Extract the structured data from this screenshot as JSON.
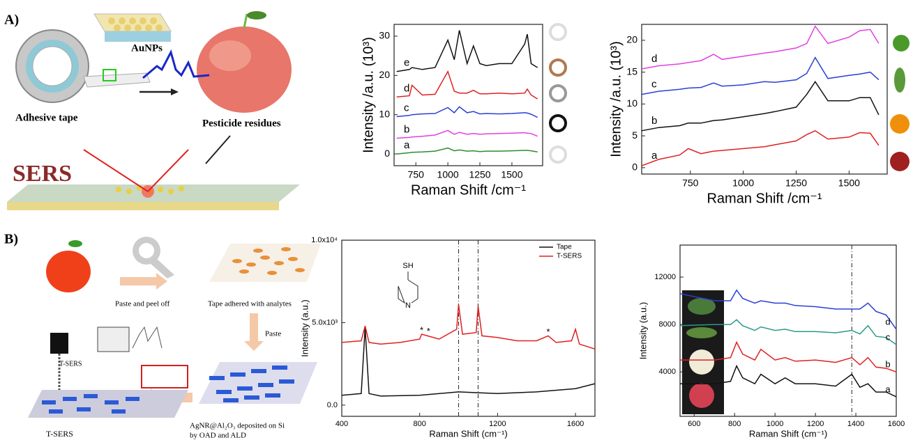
{
  "figure": {
    "panel_a": "A)",
    "panel_b": "B)",
    "aunps": "AuNPs",
    "adhesive_tape": "Adhesive tape",
    "pesticide": "Pesticide residues",
    "sers": "SERS",
    "paste_peel": "Paste and peel off",
    "tape_adhered": "Tape adhered with analytes",
    "paste": "Paste",
    "tsers_beam": "T-SERS",
    "tsers": "T-SERS",
    "agnr_1": "AgNR@Al₂O₃ deposited on Si",
    "agnr_2": "by OAD and ALD"
  },
  "chart_data": [
    {
      "type": "line",
      "xlabel": "Raman Shift /cm⁻¹",
      "ylabel": "Intensity /a.u. (10³)",
      "xlim": [
        580,
        1740
      ],
      "ylim": [
        -3,
        33
      ],
      "xticks": [
        750,
        1000,
        1250,
        1500
      ],
      "yticks": [
        0,
        10,
        20,
        30
      ],
      "x": [
        600,
        700,
        720,
        800,
        900,
        1000,
        1050,
        1090,
        1150,
        1200,
        1250,
        1300,
        1400,
        1500,
        1600,
        1620,
        1650,
        1700
      ],
      "series": [
        {
          "name": "a",
          "color": "#2e8b2e",
          "values": [
            0,
            0.3,
            0.4,
            0.5,
            0.7,
            1.5,
            0.8,
            1,
            0.7,
            0.8,
            0.6,
            0.7,
            0.7,
            0.8,
            0.9,
            0.9,
            0.8,
            0.5
          ]
        },
        {
          "name": "b",
          "color": "#e040e0",
          "values": [
            4,
            4.2,
            4.3,
            4.5,
            4.8,
            6,
            5,
            5.5,
            5,
            5.2,
            5,
            5.1,
            5.2,
            5.3,
            5.4,
            5.3,
            5.2,
            4.5
          ]
        },
        {
          "name": "c",
          "color": "#2a3fd6",
          "values": [
            9.5,
            9.8,
            10,
            10.2,
            10.3,
            11.8,
            10.5,
            12,
            10.5,
            10.8,
            10.2,
            10.3,
            10.2,
            10.3,
            10.5,
            10.4,
            10.1,
            9.3
          ]
        },
        {
          "name": "d",
          "color": "#e02020",
          "values": [
            14.5,
            14.8,
            17.5,
            15,
            15.2,
            21,
            16,
            15.5,
            15.5,
            16.2,
            15.3,
            15.3,
            15.5,
            15.3,
            15.5,
            16.5,
            15,
            14
          ]
        },
        {
          "name": "e",
          "color": "#111111",
          "values": [
            21,
            21.5,
            22,
            21.5,
            22,
            29,
            24,
            31.5,
            23,
            27.5,
            23,
            22.5,
            23,
            23,
            28,
            30.5,
            23,
            22
          ]
        }
      ]
    },
    {
      "type": "line",
      "xlabel": "Raman Shift /cm⁻¹",
      "ylabel": "Intensity /a.u. (10³)",
      "xlim": [
        520,
        1680
      ],
      "ylim": [
        -1,
        22.5
      ],
      "xticks": [
        750,
        1000,
        1250,
        1500
      ],
      "yticks": [
        0,
        5,
        10,
        15,
        20
      ],
      "x": [
        520,
        600,
        700,
        740,
        800,
        860,
        900,
        1000,
        1100,
        1150,
        1250,
        1300,
        1340,
        1400,
        1500,
        1550,
        1600,
        1640
      ],
      "series": [
        {
          "name": "a",
          "color": "#e02020",
          "values": [
            0.3,
            1.3,
            2,
            3,
            2.2,
            2.6,
            2.7,
            3,
            3.3,
            3.6,
            4.2,
            5.2,
            5.8,
            4.5,
            4.8,
            5.5,
            5.4,
            3.5
          ]
        },
        {
          "name": "b",
          "color": "#111111",
          "values": [
            5.8,
            6.3,
            6.6,
            7,
            7,
            7.4,
            7.5,
            8,
            8.5,
            8.8,
            9.5,
            11.5,
            13.5,
            10.5,
            10.5,
            11,
            11,
            8.3
          ]
        },
        {
          "name": "c",
          "color": "#2a3fd6",
          "values": [
            11.5,
            12,
            12.3,
            12.5,
            12.6,
            13.3,
            12.8,
            13,
            13.5,
            13.4,
            13.8,
            14.8,
            17.3,
            14,
            14.5,
            14.7,
            15,
            13.8
          ]
        },
        {
          "name": "d",
          "color": "#e040e0",
          "values": [
            15.5,
            16,
            16.3,
            16.5,
            16.8,
            17.8,
            17,
            17.5,
            18,
            18.2,
            18.8,
            19.5,
            22.2,
            19.5,
            20.5,
            21.5,
            21.7,
            19.5
          ]
        }
      ]
    },
    {
      "type": "line",
      "xlabel": "Raman Shift (cm⁻¹)",
      "ylabel": "Intensity (a.u.)",
      "xlim": [
        400,
        1700
      ],
      "ylim": [
        -680,
        10000
      ],
      "xticks": [
        400,
        800,
        1200,
        1600
      ],
      "yticks": [
        {
          "value": 0,
          "label": "0.0"
        },
        {
          "value": 5000,
          "label": "5.0x10³"
        },
        {
          "value": 10000,
          "label": "1.0x10⁴"
        }
      ],
      "legend": "upper right",
      "reference_lines": [
        1000,
        1100
      ],
      "annotations": [
        {
          "text": "*",
          "x": 810,
          "y": 4500
        },
        {
          "text": "*",
          "x": 845,
          "y": 4450
        },
        {
          "text": "*",
          "x": 1460,
          "y": 4400
        }
      ],
      "molecule": {
        "top": "SH",
        "ring": "N"
      },
      "series": [
        {
          "name": "Tape",
          "color": "#111111",
          "x": [
            400,
            500,
            520,
            540,
            600,
            800,
            1000,
            1100,
            1200,
            1400,
            1600,
            1700
          ],
          "values": [
            600,
            700,
            4700,
            700,
            550,
            600,
            800,
            750,
            700,
            800,
            1000,
            1300
          ]
        },
        {
          "name": "T-SERS",
          "color": "#e02020",
          "x": [
            400,
            500,
            520,
            540,
            600,
            700,
            800,
            810,
            840,
            900,
            990,
            1000,
            1020,
            1090,
            1100,
            1120,
            1200,
            1300,
            1400,
            1460,
            1500,
            1580,
            1600,
            1620,
            1700
          ],
          "values": [
            3800,
            3900,
            4800,
            3800,
            3700,
            3800,
            4000,
            4300,
            4200,
            4000,
            4600,
            6100,
            4300,
            4400,
            6000,
            4200,
            4100,
            3900,
            3900,
            4200,
            3800,
            3900,
            4600,
            3700,
            3400
          ]
        }
      ]
    },
    {
      "type": "line",
      "xlabel": "Raman Shift (cm⁻¹)",
      "ylabel": "Intensity (a.u.)",
      "xlim": [
        530,
        1600
      ],
      "ylim": [
        250,
        14700
      ],
      "xticks": [
        600,
        800,
        1000,
        1200,
        1400,
        1600
      ],
      "yticks": [
        4000,
        8000,
        12000
      ],
      "reference_lines": [
        1380
      ],
      "x": [
        530,
        700,
        780,
        810,
        840,
        900,
        930,
        1000,
        1050,
        1100,
        1200,
        1300,
        1380,
        1420,
        1460,
        1500,
        1550,
        1600
      ],
      "series": [
        {
          "name": "a",
          "color": "#111111",
          "values": [
            3000,
            3000,
            3200,
            4500,
            3500,
            3000,
            3800,
            3000,
            3500,
            3000,
            3000,
            2800,
            3800,
            2700,
            3000,
            2300,
            2300,
            1900
          ]
        },
        {
          "name": "b",
          "color": "#e02020",
          "values": [
            5000,
            5000,
            5200,
            6500,
            5500,
            5000,
            5900,
            5000,
            5200,
            4900,
            5000,
            4800,
            5200,
            4600,
            5200,
            4400,
            4300,
            4000
          ]
        },
        {
          "name": "c",
          "color": "#2a9a8a",
          "values": [
            7900,
            8000,
            8000,
            8400,
            7900,
            7500,
            7800,
            7500,
            7600,
            7400,
            7400,
            7300,
            7500,
            7200,
            7900,
            7000,
            6900,
            6300
          ]
        },
        {
          "name": "d",
          "color": "#2a3fd6",
          "values": [
            10600,
            10000,
            10000,
            10900,
            10200,
            9800,
            10000,
            9800,
            9800,
            9600,
            9500,
            9300,
            9300,
            9300,
            9800,
            9100,
            8800,
            7600
          ]
        }
      ]
    }
  ]
}
